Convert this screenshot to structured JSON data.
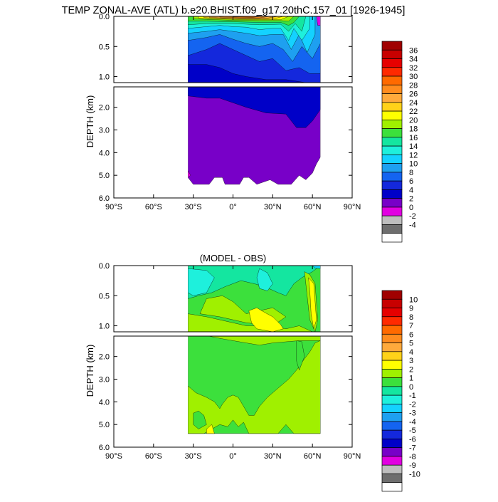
{
  "title": "TEMP ZONAL-AVE (ATL) b.e20.BHIST.f09_g17.20thC.157_01 [1926-1945]",
  "chart_data": [
    {
      "type": "heatmap",
      "title": "",
      "ylabel": "DEPTH (km)",
      "xlabel": "",
      "xlim": [
        -90,
        90
      ],
      "upper_ylim": [
        0.0,
        1.1
      ],
      "lower_ylim": [
        1.1,
        6.0
      ],
      "upper_yticks": [
        "0.0",
        "0.5",
        "1.0"
      ],
      "lower_yticks": [
        "2.0",
        "3.0",
        "4.0",
        "5.0",
        "6.0"
      ],
      "xticks": [
        "90°S",
        "60°S",
        "30°S",
        "0°",
        "30°N",
        "60°N",
        "90°N"
      ],
      "data_extent": {
        "lat_min": -34,
        "lat_max": 66
      },
      "colorbar": {
        "labels": [
          "36",
          "34",
          "32",
          "30",
          "28",
          "26",
          "24",
          "22",
          "20",
          "18",
          "16",
          "14",
          "12",
          "10",
          "8",
          "6",
          "4",
          "2",
          "0",
          "-2",
          "-4"
        ],
        "colors": [
          "#a00000",
          "#c80000",
          "#e60000",
          "#ff2a00",
          "#ff6a00",
          "#ff8c1e",
          "#ffaa3c",
          "#ffd219",
          "#ffff00",
          "#a0f000",
          "#3ce03c",
          "#14e6a0",
          "#1ef0dc",
          "#14d2ff",
          "#1ea0f0",
          "#1464f0",
          "#1428dc",
          "#0000c8",
          "#7800c8",
          "#e100e1",
          "#bebebe",
          "#6e6e6e",
          "#ffffff"
        ]
      }
    },
    {
      "type": "heatmap",
      "title": "(MODEL - OBS)",
      "ylabel": "DEPTH (km)",
      "xlabel": "",
      "xlim": [
        -90,
        90
      ],
      "upper_ylim": [
        0.0,
        1.1
      ],
      "lower_ylim": [
        1.1,
        6.0
      ],
      "upper_yticks": [
        "0.0",
        "0.5",
        "1.0"
      ],
      "lower_yticks": [
        "2.0",
        "3.0",
        "4.0",
        "5.0",
        "6.0"
      ],
      "xticks": [
        "90°S",
        "60°S",
        "30°S",
        "0°",
        "30°N",
        "60°N",
        "90°N"
      ],
      "data_extent": {
        "lat_min": -34,
        "lat_max": 66
      },
      "colorbar": {
        "labels": [
          "10",
          "9",
          "8",
          "7",
          "6",
          "5",
          "4",
          "3",
          "2",
          "1",
          "0",
          "-1",
          "-2",
          "-3",
          "-4",
          "-5",
          "-6",
          "-7",
          "-8",
          "-9",
          "-10"
        ],
        "colors": [
          "#a00000",
          "#c80000",
          "#e60000",
          "#ff2a00",
          "#ff6a00",
          "#ff8c1e",
          "#ffaa3c",
          "#ffd219",
          "#ffff00",
          "#a0f000",
          "#3ce03c",
          "#14e6a0",
          "#1ef0dc",
          "#14d2ff",
          "#1ea0f0",
          "#1464f0",
          "#1428dc",
          "#0000c8",
          "#7800c8",
          "#e100e1",
          "#bebebe",
          "#6e6e6e",
          "#ffffff"
        ]
      }
    }
  ]
}
